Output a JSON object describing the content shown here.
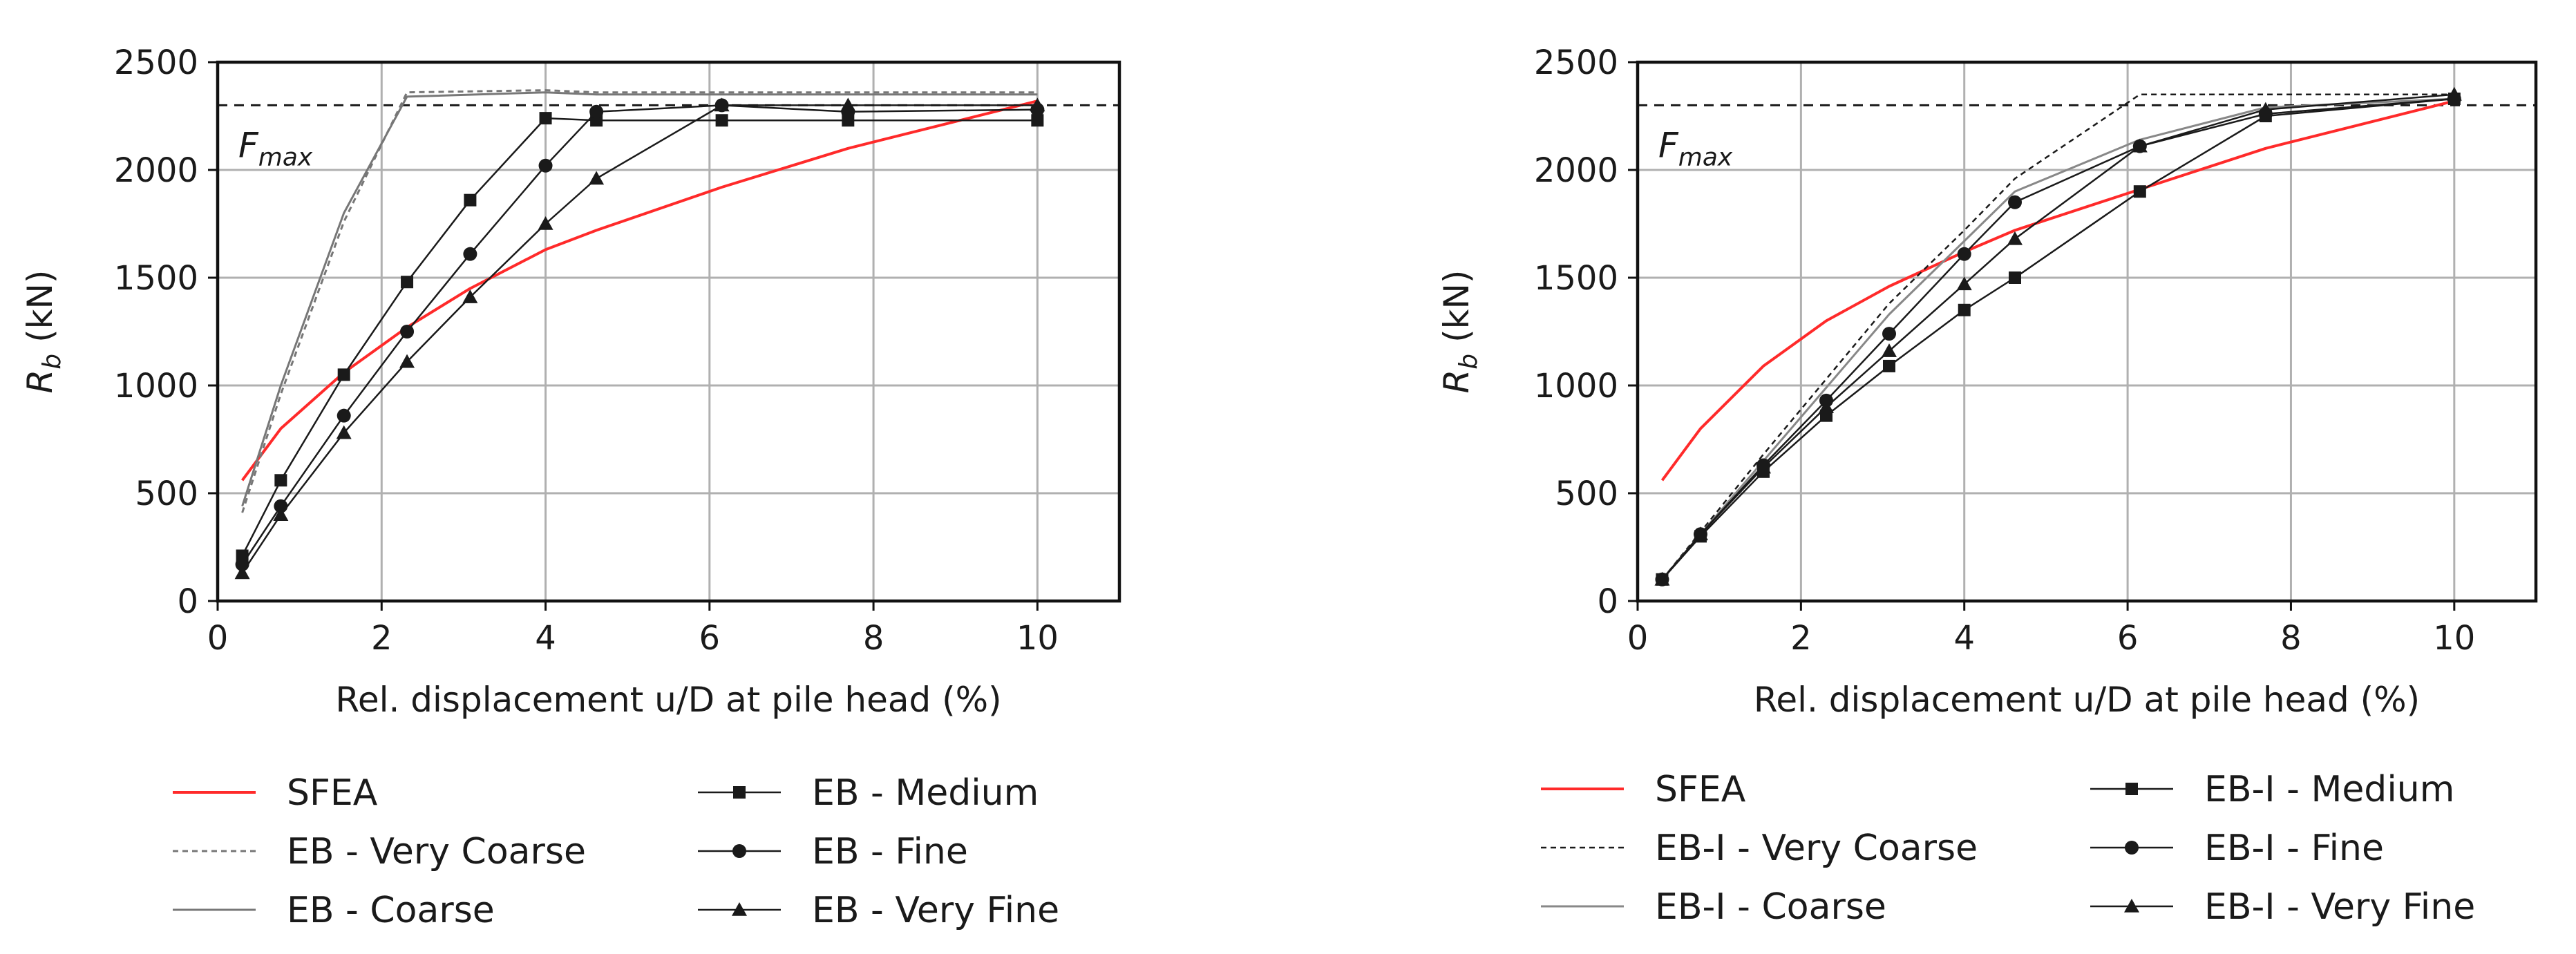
{
  "chart_data": [
    {
      "type": "line",
      "xlabel": "Rel. displacement u/D at pile head (%)",
      "ylabel": "R",
      "ylabel_sub": "b",
      "ylabel_unit": " (kN)",
      "xlim": [
        0,
        11
      ],
      "ylim": [
        0,
        2500
      ],
      "xticks": [
        0,
        2,
        4,
        6,
        8,
        10
      ],
      "yticks": [
        0,
        500,
        1000,
        1500,
        2000,
        2500
      ],
      "grid": true,
      "reference_line": {
        "y": 2300,
        "label": "F",
        "label_sub": "max",
        "style": "dashed"
      },
      "legend_position": "below",
      "series": [
        {
          "name": "SFEA",
          "color": "#ff2a2a",
          "dash": "solid",
          "marker": "none",
          "width": 4,
          "x": [
            0.3,
            0.77,
            1.54,
            2.31,
            3.08,
            4.0,
            4.62,
            6.15,
            7.69,
            10.0
          ],
          "y": [
            560,
            800,
            1060,
            1270,
            1450,
            1630,
            1720,
            1920,
            2100,
            2320
          ]
        },
        {
          "name": "EB - Very Coarse",
          "color": "#777777",
          "dash": "8,6",
          "marker": "none",
          "width": 3,
          "x": [
            0.3,
            0.77,
            1.54,
            2.31,
            4.0,
            4.62,
            6.15,
            7.69,
            10.0
          ],
          "y": [
            410,
            960,
            1760,
            2360,
            2370,
            2360,
            2360,
            2360,
            2360
          ]
        },
        {
          "name": "EB - Coarse",
          "color": "#777777",
          "dash": "solid",
          "marker": "none",
          "width": 3,
          "x": [
            0.3,
            0.77,
            1.54,
            2.31,
            4.0,
            4.62,
            6.15,
            7.69,
            10.0
          ],
          "y": [
            440,
            1000,
            1800,
            2340,
            2360,
            2350,
            2350,
            2350,
            2350
          ]
        },
        {
          "name": "EB - Medium",
          "color": "#1a1a1a",
          "dash": "solid",
          "marker": "square",
          "width": 2.5,
          "x": [
            0.3,
            0.77,
            1.54,
            2.31,
            3.08,
            4.0,
            4.62,
            6.15,
            7.69,
            10.0
          ],
          "y": [
            210,
            560,
            1050,
            1480,
            1860,
            2240,
            2230,
            2230,
            2230,
            2230
          ]
        },
        {
          "name": "EB - Fine",
          "color": "#1a1a1a",
          "dash": "solid",
          "marker": "circle",
          "width": 2.5,
          "x": [
            0.3,
            0.77,
            1.54,
            2.31,
            3.08,
            4.0,
            4.62,
            6.15,
            7.69,
            10.0
          ],
          "y": [
            170,
            440,
            860,
            1250,
            1610,
            2020,
            2270,
            2300,
            2270,
            2280
          ]
        },
        {
          "name": "EB - Very Fine",
          "color": "#1a1a1a",
          "dash": "solid",
          "marker": "triangle",
          "width": 2.5,
          "x": [
            0.3,
            0.77,
            1.54,
            2.31,
            3.08,
            4.0,
            4.62,
            6.15,
            7.69,
            10.0
          ],
          "y": [
            130,
            400,
            780,
            1110,
            1410,
            1750,
            1960,
            2300,
            2300,
            2300
          ]
        }
      ]
    },
    {
      "type": "line",
      "xlabel": "Rel. displacement u/D at pile head (%)",
      "ylabel": "R",
      "ylabel_sub": "b",
      "ylabel_unit": " (kN)",
      "xlim": [
        0,
        11
      ],
      "ylim": [
        0,
        2500
      ],
      "xticks": [
        0,
        2,
        4,
        6,
        8,
        10
      ],
      "yticks": [
        0,
        500,
        1000,
        1500,
        2000,
        2500
      ],
      "grid": true,
      "reference_line": {
        "y": 2300,
        "label": "F",
        "label_sub": "max",
        "style": "dashed"
      },
      "legend_position": "below",
      "series": [
        {
          "name": "SFEA",
          "color": "#ff2a2a",
          "dash": "solid",
          "marker": "none",
          "width": 4,
          "x": [
            0.3,
            0.77,
            1.54,
            2.31,
            3.08,
            4.0,
            4.62,
            6.15,
            7.69,
            10.0
          ],
          "y": [
            560,
            800,
            1090,
            1300,
            1460,
            1620,
            1720,
            1910,
            2100,
            2320
          ]
        },
        {
          "name": "EB-I - Very Coarse",
          "color": "#1a1a1a",
          "dash": "8,6",
          "marker": "none",
          "width": 2.5,
          "x": [
            0.3,
            0.77,
            1.54,
            2.31,
            3.08,
            4.0,
            4.62,
            6.15,
            7.69,
            10.0
          ],
          "y": [
            100,
            320,
            680,
            1030,
            1380,
            1720,
            1960,
            2350,
            2350,
            2350
          ]
        },
        {
          "name": "EB-I - Coarse",
          "color": "#888888",
          "dash": "solid",
          "marker": "none",
          "width": 3,
          "x": [
            0.3,
            0.77,
            1.54,
            2.31,
            3.08,
            4.0,
            4.62,
            6.15,
            7.69,
            10.0
          ],
          "y": [
            100,
            310,
            650,
            990,
            1330,
            1670,
            1900,
            2140,
            2290,
            2330
          ]
        },
        {
          "name": "EB-I - Medium",
          "color": "#1a1a1a",
          "dash": "solid",
          "marker": "square",
          "width": 2.5,
          "x": [
            0.3,
            0.77,
            1.54,
            2.31,
            3.08,
            4.0,
            4.62,
            6.15,
            7.69,
            10.0
          ],
          "y": [
            100,
            300,
            600,
            860,
            1090,
            1350,
            1500,
            1900,
            2250,
            2330
          ]
        },
        {
          "name": "EB-I - Fine",
          "color": "#1a1a1a",
          "dash": "solid",
          "marker": "circle",
          "width": 2.5,
          "x": [
            0.3,
            0.77,
            1.54,
            2.31,
            3.08,
            4.0,
            4.62,
            6.15,
            7.69,
            10.0
          ],
          "y": [
            100,
            310,
            630,
            930,
            1240,
            1610,
            1850,
            2110,
            2260,
            2330
          ]
        },
        {
          "name": "EB-I - Very Fine",
          "color": "#1a1a1a",
          "dash": "solid",
          "marker": "triangle",
          "width": 2.5,
          "x": [
            0.3,
            0.77,
            1.54,
            2.31,
            3.08,
            4.0,
            4.62,
            6.15,
            7.69,
            10.0
          ],
          "y": [
            100,
            310,
            620,
            900,
            1160,
            1470,
            1680,
            2110,
            2280,
            2350
          ]
        }
      ]
    }
  ]
}
